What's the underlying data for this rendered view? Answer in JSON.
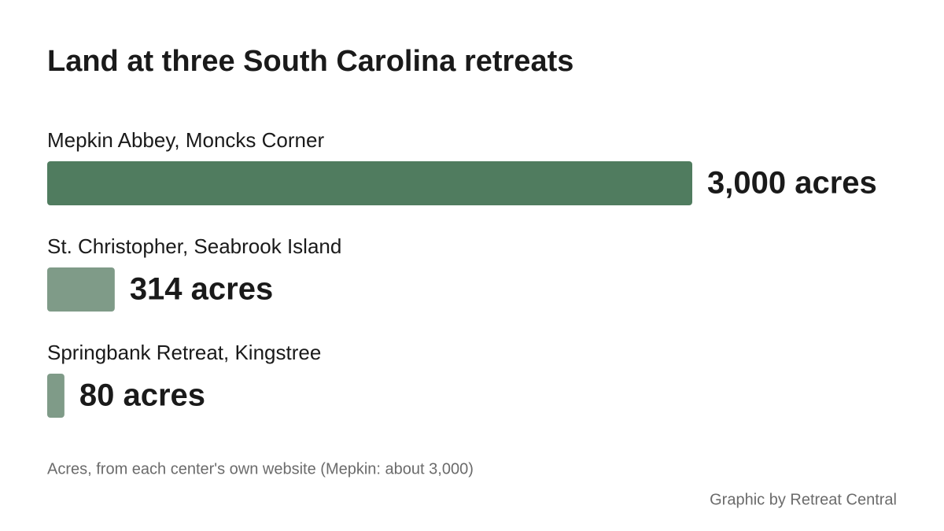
{
  "chart_data": {
    "type": "bar",
    "orientation": "horizontal",
    "title": "Land at three South Carolina retreats",
    "categories": [
      "Mepkin Abbey, Moncks Corner",
      "St. Christopher, Seabrook Island",
      "Springbank Retreat, Kingstree"
    ],
    "values": [
      3000,
      314,
      80
    ],
    "value_labels": [
      "3,000 acres",
      "314 acres",
      "80 acres"
    ],
    "colors": [
      "#507c5f",
      "#7f9b88",
      "#7f9b88"
    ],
    "note": "Acres, from each center's own website (Mepkin: about 3,000)",
    "credit": "Graphic by Retreat Central"
  }
}
